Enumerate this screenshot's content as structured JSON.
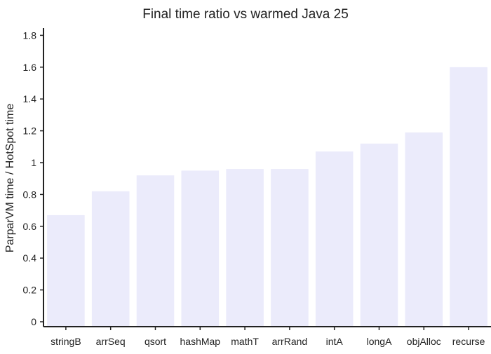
{
  "chart_data": {
    "type": "bar",
    "title": "Final time ratio vs warmed Java 25",
    "xlabel": "",
    "ylabel": "ParparVM time / HotSpot time",
    "categories": [
      "stringB",
      "arrSeq",
      "qsort",
      "hashMap",
      "mathT",
      "arrRand",
      "intA",
      "longA",
      "objAlloc",
      "recurse"
    ],
    "values": [
      0.67,
      0.82,
      0.92,
      0.95,
      0.96,
      0.96,
      1.07,
      1.12,
      1.19,
      1.6
    ],
    "ylim": [
      0,
      1.85
    ],
    "yticks": [
      "0",
      "0.2",
      "0.4",
      "0.6",
      "0.8",
      "1",
      "1.2",
      "1.4",
      "1.6",
      "1.8"
    ],
    "grid": false,
    "legend": "none",
    "colors": {
      "bar": "#ebebfb",
      "axis": "#222222",
      "text": "#222222"
    }
  }
}
